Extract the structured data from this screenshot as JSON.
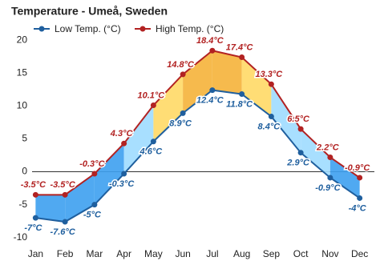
{
  "chart_data": {
    "type": "line",
    "title": "Temperature - Umeå, Sweden",
    "categories": [
      "Jan",
      "Feb",
      "Mar",
      "Apr",
      "May",
      "Jun",
      "Jul",
      "Aug",
      "Sep",
      "Oct",
      "Nov",
      "Dec"
    ],
    "series": [
      {
        "name": "Low Temp. (°C)",
        "color": "#1f5f9e",
        "values": [
          -7,
          -7.6,
          -5,
          -0.3,
          4.6,
          8.9,
          12.4,
          11.8,
          8.4,
          2.9,
          -0.9,
          -4
        ],
        "value_labels": [
          "-7°C",
          "-7.6°C",
          "-5°C",
          "-0.3°C",
          "4.6°C",
          "8.9°C",
          "12.4°C",
          "11.8°C",
          "8.4°C",
          "2.9°C",
          "-0.9°C",
          "-4°C"
        ]
      },
      {
        "name": "High Temp. (°C)",
        "color": "#b22222",
        "values": [
          -3.5,
          -3.5,
          -0.3,
          4.3,
          10.1,
          14.8,
          18.4,
          17.4,
          13.3,
          6.5,
          2.2,
          -0.9
        ],
        "value_labels": [
          "-3.5°C",
          "-3.5°C",
          "-0.3°C",
          "4.3°C",
          "10.1°C",
          "14.8°C",
          "18.4°C",
          "17.4°C",
          "13.3°C",
          "6.5°C",
          "2.2°C",
          "-0.9°C"
        ]
      }
    ],
    "ylim": [
      -11,
      20.5
    ],
    "yticks": [
      -10,
      -5,
      0,
      5,
      10,
      15,
      20
    ],
    "grid": false
  }
}
